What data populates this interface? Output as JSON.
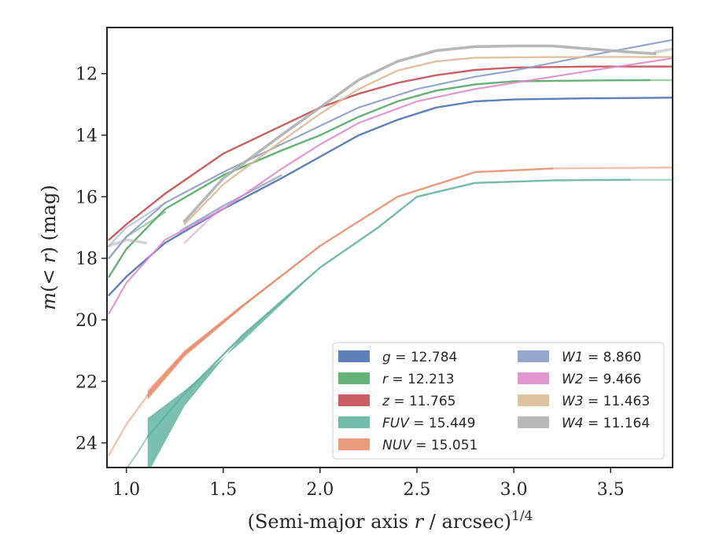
{
  "chart_data": {
    "type": "line",
    "xlabel": "(Semi-major axis r / arcsec)",
    "xlabel_var": "r",
    "xlabel_parts": [
      "(Semi-major axis ",
      "r",
      " / arcsec)",
      "1/4"
    ],
    "ylabel_parts": [
      "m",
      "(< ",
      "r",
      ") (mag)"
    ],
    "xlim": [
      0.9,
      3.82
    ],
    "ylim": [
      24.8,
      10.5
    ],
    "y_inverted": true,
    "xticks": [
      1.0,
      1.5,
      2.0,
      2.5,
      3.0,
      3.5
    ],
    "xtick_labels": [
      "1.0",
      "1.5",
      "2.0",
      "2.5",
      "3.0",
      "3.5"
    ],
    "yticks": [
      12,
      14,
      16,
      18,
      20,
      22,
      24
    ],
    "ytick_labels": [
      "12",
      "14",
      "16",
      "18",
      "20",
      "22",
      "24"
    ],
    "grid": false,
    "legend_position": "lower-right",
    "legend_columns": 2,
    "series": [
      {
        "name": "g",
        "label_value": "= 12.784",
        "color": "#4c72b0",
        "width": 2.4,
        "main": [
          [
            0.91,
            19.2
          ],
          [
            1.0,
            18.6
          ],
          [
            1.2,
            17.5
          ],
          [
            1.5,
            16.4
          ],
          [
            1.8,
            15.4
          ],
          [
            2.0,
            14.7
          ],
          [
            2.2,
            14.0
          ],
          [
            2.4,
            13.5
          ],
          [
            2.6,
            13.1
          ],
          [
            2.8,
            12.9
          ],
          [
            3.0,
            12.84
          ],
          [
            3.4,
            12.8
          ],
          [
            3.82,
            12.78
          ]
        ],
        "extra": [
          [
            [
              1.28,
              17.1
            ],
            [
              1.5,
              16.3
            ],
            [
              1.8,
              15.3
            ]
          ]
        ]
      },
      {
        "name": "r",
        "label_value": "= 12.213",
        "color": "#55a868",
        "width": 2.4,
        "main": [
          [
            0.91,
            18.6
          ],
          [
            1.0,
            17.7
          ],
          [
            1.2,
            16.4
          ],
          [
            1.5,
            15.3
          ],
          [
            1.8,
            14.5
          ],
          [
            2.0,
            14.0
          ],
          [
            2.2,
            13.4
          ],
          [
            2.4,
            12.9
          ],
          [
            2.6,
            12.55
          ],
          [
            2.8,
            12.35
          ],
          [
            3.0,
            12.25
          ],
          [
            3.4,
            12.22
          ],
          [
            3.7,
            12.21
          ]
        ],
        "extra": [
          [
            [
              0.91,
              18.0
            ],
            [
              1.0,
              17.3
            ],
            [
              1.2,
              16.5
            ]
          ],
          [
            [
              3.7,
              12.21
            ],
            [
              3.82,
              12.21
            ]
          ]
        ]
      },
      {
        "name": "z",
        "label_value": "= 11.765",
        "color": "#c44e52",
        "width": 2.4,
        "main": [
          [
            0.91,
            17.4
          ],
          [
            1.0,
            16.9
          ],
          [
            1.2,
            15.9
          ],
          [
            1.5,
            14.6
          ],
          [
            1.8,
            13.7
          ],
          [
            2.0,
            13.1
          ],
          [
            2.2,
            12.65
          ],
          [
            2.4,
            12.3
          ],
          [
            2.6,
            12.05
          ],
          [
            2.8,
            11.88
          ],
          [
            3.0,
            11.8
          ],
          [
            3.4,
            11.77
          ],
          [
            3.82,
            11.77
          ]
        ],
        "extra": []
      },
      {
        "name": "FUV",
        "label_value": "= 15.449",
        "color": "#64b5a0",
        "width": 2.4,
        "band_upper": [
          [
            1.11,
            23.2
          ],
          [
            1.3,
            22.3
          ],
          [
            1.6,
            20.7
          ],
          [
            2.0,
            18.3
          ],
          [
            2.3,
            17.0
          ],
          [
            2.5,
            16.0
          ],
          [
            2.8,
            15.55
          ],
          [
            3.2,
            15.47
          ],
          [
            3.6,
            15.45
          ]
        ],
        "band_lower": [
          [
            1.11,
            25.0
          ],
          [
            1.3,
            22.8
          ],
          [
            1.6,
            20.5
          ],
          [
            2.0,
            18.3
          ],
          [
            2.3,
            17.0
          ],
          [
            2.5,
            16.0
          ],
          [
            2.8,
            15.55
          ],
          [
            3.2,
            15.47
          ],
          [
            3.6,
            15.45
          ]
        ],
        "main": [
          [
            1.11,
            23.8
          ],
          [
            1.3,
            22.4
          ],
          [
            1.6,
            20.5
          ],
          [
            2.0,
            18.3
          ],
          [
            2.3,
            17.0
          ],
          [
            2.5,
            16.0
          ],
          [
            2.8,
            15.55
          ],
          [
            3.2,
            15.47
          ],
          [
            3.6,
            15.45
          ]
        ],
        "extra": [
          [
            [
              0.96,
              25.2
            ],
            [
              1.05,
              24.4
            ],
            [
              1.11,
              23.8
            ]
          ],
          [
            [
              3.6,
              15.45
            ],
            [
              3.82,
              15.45
            ]
          ]
        ]
      },
      {
        "name": "NUV",
        "label_value": "= 15.051",
        "color": "#e8906e",
        "width": 2.4,
        "band_upper": [
          [
            1.11,
            22.3
          ],
          [
            1.3,
            21.0
          ],
          [
            1.6,
            19.5
          ],
          [
            2.0,
            17.6
          ],
          [
            2.4,
            16.0
          ],
          [
            2.8,
            15.2
          ],
          [
            3.2,
            15.08
          ]
        ],
        "band_lower": [
          [
            1.11,
            22.6
          ],
          [
            1.3,
            21.2
          ],
          [
            1.6,
            19.6
          ],
          [
            2.0,
            17.6
          ],
          [
            2.4,
            16.0
          ],
          [
            2.8,
            15.2
          ],
          [
            3.2,
            15.08
          ]
        ],
        "main": [
          [
            1.11,
            22.45
          ],
          [
            1.3,
            21.1
          ],
          [
            1.6,
            19.55
          ],
          [
            2.0,
            17.6
          ],
          [
            2.4,
            16.0
          ],
          [
            2.8,
            15.2
          ],
          [
            3.2,
            15.08
          ]
        ],
        "extra": [
          [
            [
              0.91,
              24.4
            ],
            [
              1.0,
              23.4
            ],
            [
              1.11,
              22.45
            ]
          ],
          [
            [
              3.2,
              15.08
            ],
            [
              3.82,
              15.05
            ]
          ]
        ]
      },
      {
        "name": "W1",
        "label_value": "= 8.860",
        "color": "#8c9cc5",
        "width": 2.2,
        "main": [
          [
            0.91,
            18.0
          ],
          [
            1.0,
            17.3
          ],
          [
            1.2,
            16.2
          ],
          [
            1.5,
            15.2
          ],
          [
            1.8,
            14.3
          ],
          [
            2.0,
            13.7
          ],
          [
            2.2,
            13.1
          ],
          [
            2.5,
            12.5
          ],
          [
            2.8,
            12.1
          ],
          [
            3.0,
            11.9
          ],
          [
            3.4,
            11.4
          ],
          [
            3.82,
            10.9
          ]
        ],
        "extra": [
          [
            [
              0.91,
              17.6
            ],
            [
              1.0,
              17.0
            ],
            [
              1.2,
              16.2
            ]
          ]
        ]
      },
      {
        "name": "W2",
        "label_value": "= 9.466",
        "color": "#dd8cc8",
        "width": 2.2,
        "main": [
          [
            0.91,
            19.8
          ],
          [
            1.0,
            18.8
          ],
          [
            1.2,
            17.4
          ],
          [
            1.5,
            16.4
          ],
          [
            1.8,
            15.1
          ],
          [
            2.0,
            14.3
          ],
          [
            2.2,
            13.6
          ],
          [
            2.5,
            12.9
          ],
          [
            2.8,
            12.5
          ],
          [
            3.1,
            12.2
          ],
          [
            3.4,
            11.9
          ],
          [
            3.82,
            11.5
          ]
        ],
        "extra": [
          [
            [
              1.3,
              17.5
            ],
            [
              1.5,
              16.3
            ]
          ]
        ]
      },
      {
        "name": "W3",
        "label_value": "= 11.463",
        "color": "#dcbb96",
        "width": 2.4,
        "main": [
          [
            1.3,
            16.9
          ],
          [
            1.5,
            15.6
          ],
          [
            1.8,
            14.2
          ],
          [
            2.0,
            13.3
          ],
          [
            2.2,
            12.5
          ],
          [
            2.4,
            11.9
          ],
          [
            2.6,
            11.6
          ],
          [
            2.8,
            11.48
          ],
          [
            3.2,
            11.46
          ],
          [
            3.82,
            11.46
          ]
        ],
        "extra": []
      },
      {
        "name": "W4",
        "label_value": "= 11.164",
        "color": "#b0b0b0",
        "width": 3.6,
        "main": [
          [
            1.3,
            16.8
          ],
          [
            1.5,
            15.4
          ],
          [
            1.8,
            14.0
          ],
          [
            2.0,
            13.1
          ],
          [
            2.2,
            12.2
          ],
          [
            2.4,
            11.6
          ],
          [
            2.6,
            11.25
          ],
          [
            2.8,
            11.12
          ],
          [
            3.0,
            11.1
          ],
          [
            3.2,
            11.1
          ],
          [
            3.4,
            11.2
          ],
          [
            3.6,
            11.3
          ],
          [
            3.73,
            11.35
          ]
        ],
        "extra": [
          [
            [
              0.91,
              17.6
            ],
            [
              1.0,
              17.4
            ],
            [
              1.1,
              17.5
            ]
          ],
          [
            [
              3.73,
              11.3
            ],
            [
              3.82,
              11.2
            ]
          ]
        ]
      }
    ]
  }
}
